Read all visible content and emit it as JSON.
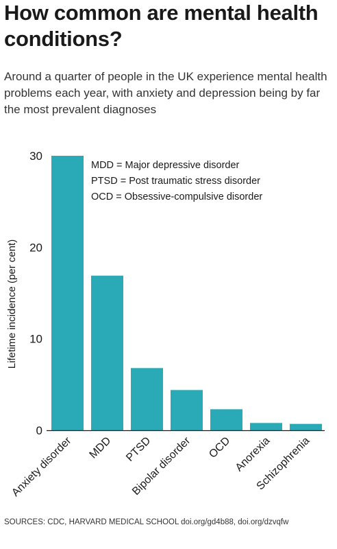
{
  "title": "How common are mental health conditions?",
  "subtitle": "Around a quarter of people in the UK experience mental health problems each year, with anxiety and depression being by far the most prevalent diagnoses",
  "legend_notes": [
    "MDD = Major depressive disorder",
    "PTSD = Post traumatic stress disorder",
    "OCD = Obsessive-compulsive disorder"
  ],
  "sources": "SOURCES: CDC, HARVARD MEDICAL SCHOOL doi.org/gd4b88, doi.org/dzvqfw",
  "colors": {
    "bar": "#2aaab6",
    "axis": "#1a1a1a"
  },
  "chart_data": {
    "type": "bar",
    "ylabel": "Lifetime incidence (per cent)",
    "ylim": [
      0,
      30
    ],
    "yticks": [
      0,
      10,
      20,
      30
    ],
    "categories": [
      "Anxiety disorder",
      "MDD",
      "PTSD",
      "Bipolar disorder",
      "OCD",
      "Anorexia",
      "Schizophrenia"
    ],
    "values": [
      30,
      16.9,
      6.8,
      4.4,
      2.3,
      0.8,
      0.7
    ],
    "grid": false
  }
}
